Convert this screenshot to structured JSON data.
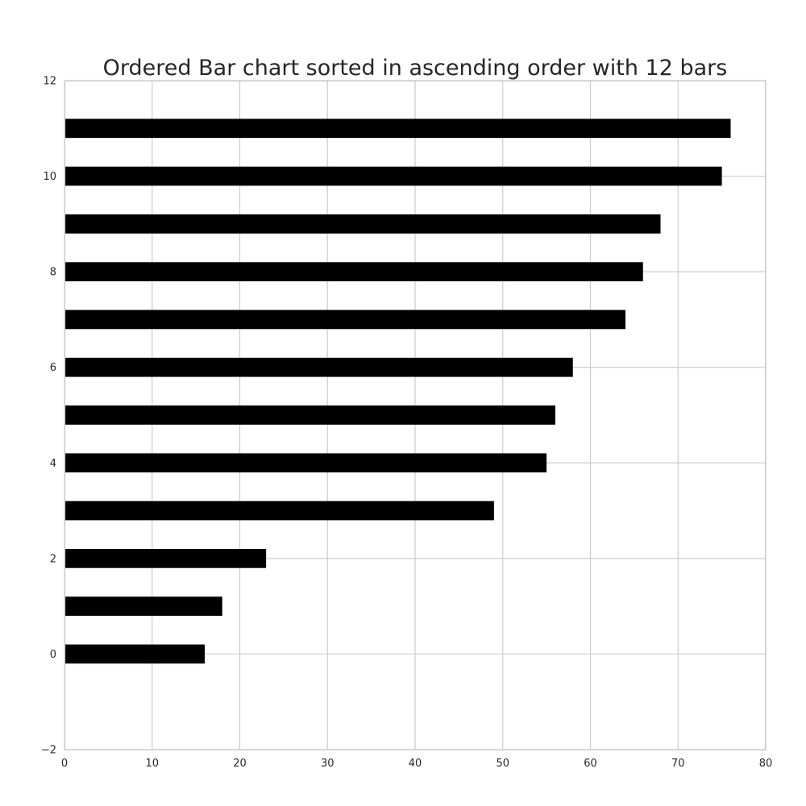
{
  "chart_data": {
    "type": "bar",
    "orientation": "horizontal",
    "title": "Ordered Bar chart sorted in ascending order with 12 bars",
    "xlabel": "",
    "ylabel": "",
    "categories": [
      0,
      1,
      2,
      3,
      4,
      5,
      6,
      7,
      8,
      9,
      10,
      11
    ],
    "values": [
      16,
      18,
      23,
      49,
      55,
      56,
      58,
      64,
      66,
      68,
      75,
      76
    ],
    "xlim": [
      0,
      80
    ],
    "ylim": [
      -2,
      12
    ],
    "xticks": [
      "0",
      "10",
      "20",
      "30",
      "40",
      "50",
      "60",
      "70",
      "80"
    ],
    "yticks": [
      "−2",
      "0",
      "2",
      "4",
      "6",
      "8",
      "10",
      "12"
    ],
    "bar_color": "#000000",
    "grid": true
  }
}
